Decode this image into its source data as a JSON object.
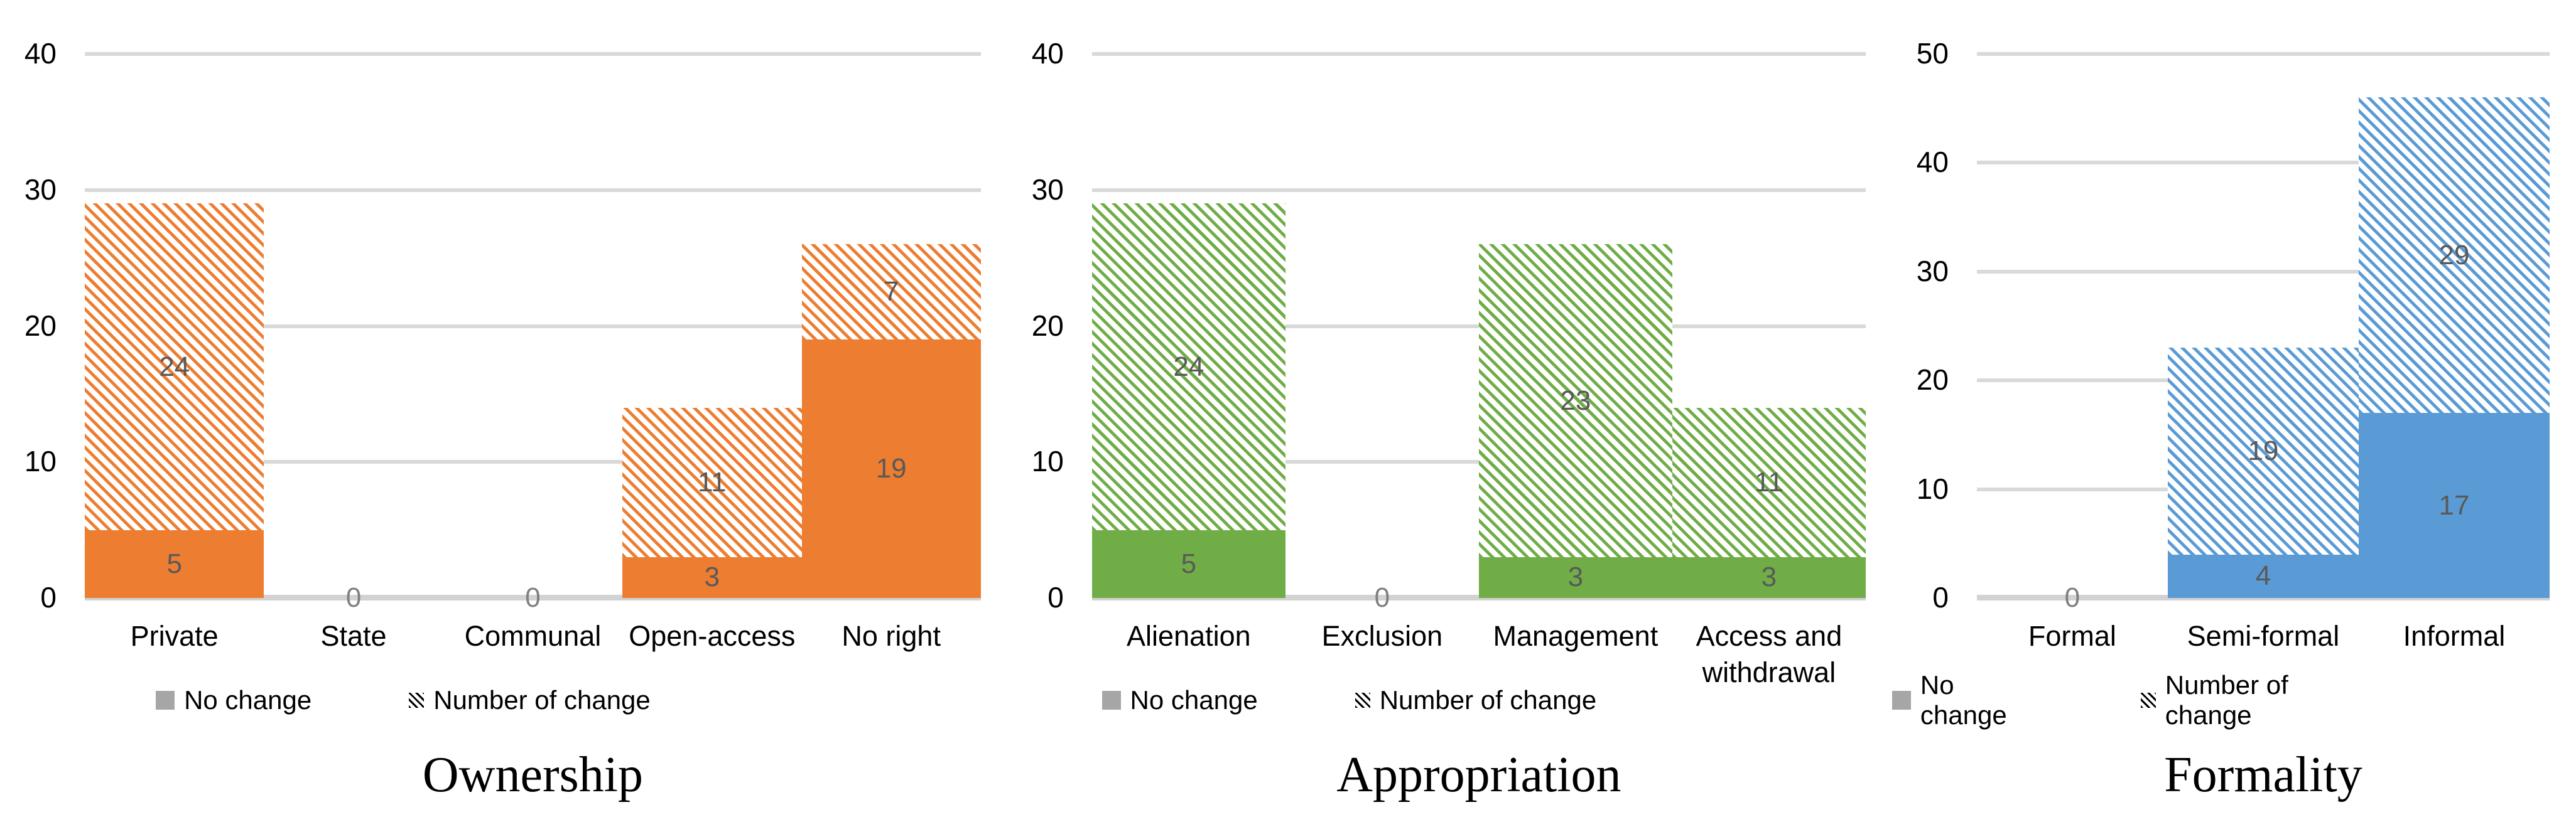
{
  "chart_data": [
    {
      "type": "bar",
      "stacked": true,
      "title": "Ownership",
      "color": "#ED7D31",
      "categories": [
        "Private",
        "State",
        "Communal",
        "Open-access",
        "No right"
      ],
      "series": [
        {
          "name": "No change",
          "pattern": "solid",
          "values": [
            5,
            0,
            0,
            3,
            19
          ]
        },
        {
          "name": "Number of change",
          "pattern": "diagonal-hatch",
          "values": [
            24,
            0,
            0,
            11,
            7
          ]
        }
      ],
      "ylim": [
        0,
        40
      ],
      "yticks": [
        0,
        10,
        20,
        30,
        40
      ],
      "grid": true,
      "legend_position": "bottom"
    },
    {
      "type": "bar",
      "stacked": true,
      "title": "Appropriation",
      "color": "#70AD47",
      "categories": [
        "Alienation",
        "Exclusion",
        "Management",
        "Access and withdrawal"
      ],
      "series": [
        {
          "name": "No change",
          "pattern": "solid",
          "values": [
            5,
            0,
            3,
            3
          ]
        },
        {
          "name": "Number of change",
          "pattern": "diagonal-hatch",
          "values": [
            24,
            0,
            23,
            11
          ]
        }
      ],
      "ylim": [
        0,
        40
      ],
      "yticks": [
        0,
        10,
        20,
        30,
        40
      ],
      "grid": true,
      "legend_position": "bottom"
    },
    {
      "type": "bar",
      "stacked": true,
      "title": "Formality",
      "color": "#5B9BD5",
      "categories": [
        "Formal",
        "Semi-formal",
        "Informal"
      ],
      "series": [
        {
          "name": "No change",
          "pattern": "solid",
          "values": [
            0,
            4,
            17
          ]
        },
        {
          "name": "Number of change",
          "pattern": "diagonal-hatch",
          "values": [
            0,
            19,
            29
          ]
        }
      ],
      "ylim": [
        0,
        50
      ],
      "yticks": [
        0,
        10,
        20,
        30,
        40,
        50
      ],
      "grid": true,
      "legend_position": "bottom"
    }
  ],
  "styles": {
    "background": "#FFFFFF",
    "grid_color": "#D9D9D9",
    "baseline_color": "#D2D2D2",
    "value_label_color": "#595959",
    "zero_label_color": "#7F7F7F",
    "axis_text_color": "#000000",
    "legend_text_color": "#000000",
    "legend_no_change_marker_color": "#A6A6A6",
    "legend_change_marker_color": "#000000"
  }
}
